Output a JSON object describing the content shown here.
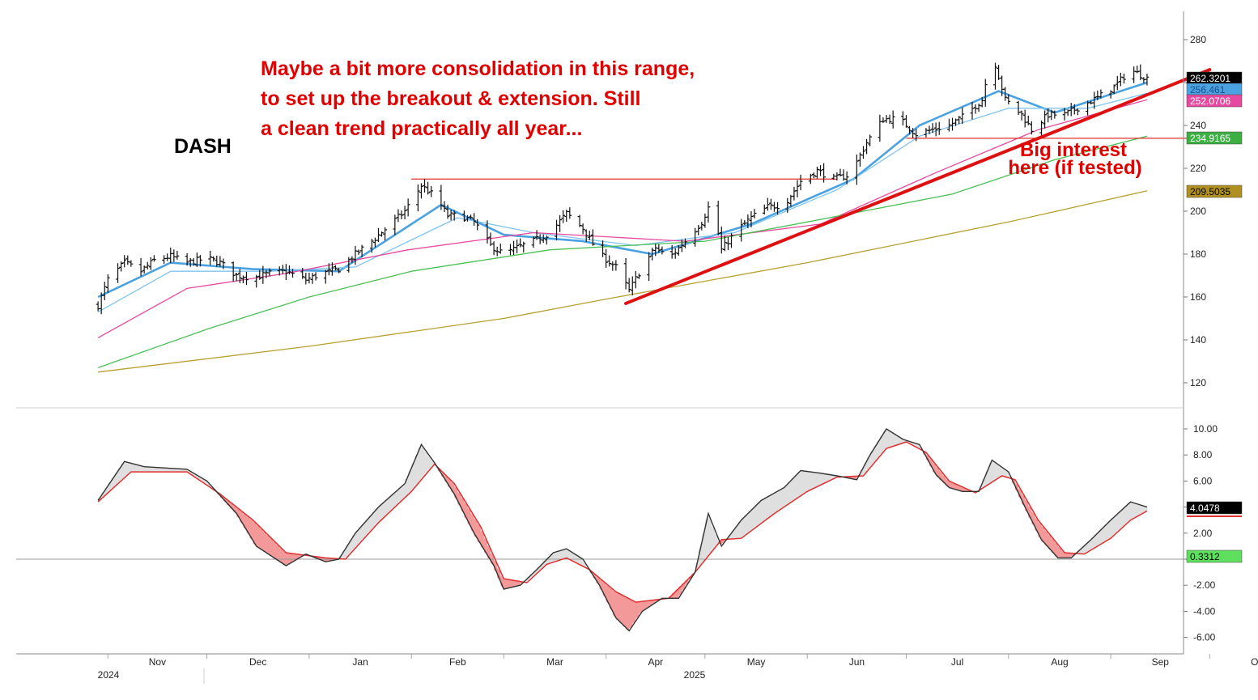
{
  "chart_data": [
    {
      "type": "ohlc",
      "ticker": "DASH",
      "title": "DASH",
      "annotation_main": [
        "Maybe a bit more consolidation in this range,",
        "to set up the breakout & extension. Still",
        "a clean trend practically all year..."
      ],
      "annotation_support": [
        "Big interest",
        "here (if tested)"
      ],
      "ylim": [
        110,
        288
      ],
      "y_ticks": [
        120,
        140,
        160,
        180,
        200,
        220,
        240,
        260,
        280
      ],
      "x_months": [
        "Nov",
        "Dec",
        "Jan",
        "Feb",
        "Mar",
        "Apr",
        "May",
        "Jun",
        "Jul",
        "Aug",
        "Sep",
        "Oct"
      ],
      "x_years": [
        "2024",
        "2025"
      ],
      "close_path": [
        [
          "2024-10-29",
          156
        ],
        [
          "2024-11-01",
          168
        ],
        [
          "2024-11-06",
          176
        ],
        [
          "2024-11-11",
          172
        ],
        [
          "2024-11-15",
          177
        ],
        [
          "2024-11-20",
          179
        ],
        [
          "2024-11-25",
          176
        ],
        [
          "2024-12-01",
          178
        ],
        [
          "2024-12-05",
          176
        ],
        [
          "2024-12-10",
          170
        ],
        [
          "2024-12-15",
          169
        ],
        [
          "2024-12-20",
          171
        ],
        [
          "2024-12-25",
          172
        ],
        [
          "2024-12-31",
          168
        ],
        [
          "2025-01-05",
          171
        ],
        [
          "2025-01-10",
          173
        ],
        [
          "2025-01-15",
          180
        ],
        [
          "2025-01-20",
          186
        ],
        [
          "2025-01-25",
          193
        ],
        [
          "2025-01-30",
          200
        ],
        [
          "2025-02-04",
          212
        ],
        [
          "2025-02-08",
          207
        ],
        [
          "2025-02-12",
          198
        ],
        [
          "2025-02-16",
          198
        ],
        [
          "2025-02-20",
          195
        ],
        [
          "2025-02-25",
          184
        ],
        [
          "2025-03-01",
          180
        ],
        [
          "2025-03-05",
          183
        ],
        [
          "2025-03-10",
          186
        ],
        [
          "2025-03-15",
          190
        ],
        [
          "2025-03-20",
          199
        ],
        [
          "2025-03-25",
          192
        ],
        [
          "2025-03-30",
          180
        ],
        [
          "2025-04-04",
          174
        ],
        [
          "2025-04-08",
          163
        ],
        [
          "2025-04-12",
          174
        ],
        [
          "2025-04-16",
          183
        ],
        [
          "2025-04-20",
          178
        ],
        [
          "2025-04-25",
          186
        ],
        [
          "2025-04-30",
          195
        ],
        [
          "2025-05-03",
          205
        ],
        [
          "2025-05-06",
          182
        ],
        [
          "2025-05-10",
          190
        ],
        [
          "2025-05-15",
          197
        ],
        [
          "2025-05-20",
          202
        ],
        [
          "2025-05-25",
          203
        ],
        [
          "2025-05-30",
          214
        ],
        [
          "2025-06-04",
          219
        ],
        [
          "2025-06-09",
          215
        ],
        [
          "2025-06-14",
          217
        ],
        [
          "2025-06-19",
          232
        ],
        [
          "2025-06-24",
          243
        ],
        [
          "2025-06-29",
          243
        ],
        [
          "2025-07-04",
          236
        ],
        [
          "2025-07-09",
          238
        ],
        [
          "2025-07-14",
          240
        ],
        [
          "2025-07-19",
          245
        ],
        [
          "2025-07-24",
          252
        ],
        [
          "2025-07-27",
          274
        ],
        [
          "2025-07-31",
          252
        ],
        [
          "2025-08-05",
          245
        ],
        [
          "2025-08-08",
          238
        ],
        [
          "2025-08-13",
          245
        ],
        [
          "2025-08-18",
          245
        ],
        [
          "2025-08-23",
          249
        ],
        [
          "2025-08-28",
          253
        ],
        [
          "2025-09-02",
          258
        ],
        [
          "2025-09-07",
          266
        ],
        [
          "2025-09-12",
          262
        ]
      ],
      "moving_averages": [
        {
          "name": "fast MA",
          "color": "#4aa3e0",
          "points": [
            [
              "2024-10-29",
              160
            ],
            [
              "2024-11-20",
              176
            ],
            [
              "2024-12-15",
              173
            ],
            [
              "2025-01-10",
              172
            ],
            [
              "2025-02-10",
              203
            ],
            [
              "2025-03-01",
              189
            ],
            [
              "2025-03-25",
              186
            ],
            [
              "2025-04-15",
              180
            ],
            [
              "2025-05-15",
              194
            ],
            [
              "2025-06-15",
              215
            ],
            [
              "2025-07-05",
              240
            ],
            [
              "2025-07-29",
              256
            ],
            [
              "2025-08-15",
              246
            ],
            [
              "2025-09-12",
              260
            ]
          ]
        },
        {
          "name": "slow MA",
          "color": "#80c4f0",
          "points": [
            [
              "2024-10-29",
              153
            ],
            [
              "2024-11-20",
              172
            ],
            [
              "2024-12-20",
              172
            ],
            [
              "2025-01-15",
              174
            ],
            [
              "2025-02-15",
              197
            ],
            [
              "2025-03-10",
              190
            ],
            [
              "2025-04-10",
              184
            ],
            [
              "2025-05-10",
              190
            ],
            [
              "2025-06-10",
              210
            ],
            [
              "2025-07-05",
              235
            ],
            [
              "2025-08-01",
              248
            ],
            [
              "2025-08-25",
              248
            ],
            [
              "2025-09-12",
              255
            ]
          ]
        },
        {
          "name": "50-day MA",
          "label": "252.0706",
          "color": "#e64aa0",
          "points": [
            [
              "2024-10-29",
              141
            ],
            [
              "2024-11-25",
              164
            ],
            [
              "2024-12-25",
              171
            ],
            [
              "2025-01-31",
              182
            ],
            [
              "2025-03-10",
              190
            ],
            [
              "2025-04-25",
              186
            ],
            [
              "2025-06-05",
              194
            ],
            [
              "2025-07-10",
              218
            ],
            [
              "2025-08-10",
              238
            ],
            [
              "2025-09-12",
              252
            ]
          ]
        },
        {
          "name": "100-day MA",
          "label": "234.9165",
          "color": "#4cbf56",
          "points": [
            [
              "2024-10-29",
              127
            ],
            [
              "2024-12-01",
              145
            ],
            [
              "2025-01-01",
              160
            ],
            [
              "2025-02-01",
              172
            ],
            [
              "2025-03-15",
              182
            ],
            [
              "2025-05-01",
              186
            ],
            [
              "2025-06-01",
              195
            ],
            [
              "2025-07-15",
              208
            ],
            [
              "2025-08-15",
              224
            ],
            [
              "2025-09-12",
              235
            ]
          ]
        },
        {
          "name": "200-day MA",
          "label": "209.5035",
          "color": "#b8a030",
          "points": [
            [
              "2024-10-29",
              125
            ],
            [
              "2025-01-01",
              137
            ],
            [
              "2025-03-01",
              150
            ],
            [
              "2025-04-01",
              159
            ],
            [
              "2025-06-01",
              176
            ],
            [
              "2025-08-01",
              195
            ],
            [
              "2025-09-12",
              209.5
            ]
          ]
        }
      ],
      "horizontal_levels": [
        {
          "from": "2025-02-01",
          "to": "2025-06-10",
          "value": 215,
          "color": "#e03030"
        },
        {
          "from": "2025-07-01",
          "to": "2025-10-01",
          "value": 234,
          "color": "#e03030"
        }
      ],
      "trendline": {
        "from": [
          "2025-04-07",
          157
        ],
        "to": [
          "2025-10-01",
          266
        ],
        "color": "#dd1111"
      },
      "price_labels": [
        {
          "label": "262.3201",
          "value": 262.3201,
          "bg": "#000000",
          "fg": "#ffffff"
        },
        {
          "label": "256.461",
          "value": 256.461,
          "bg": "#4aa3e0",
          "fg": "#1a4f8a"
        },
        {
          "label": "252.0706",
          "value": 252.0706,
          "bg": "#e64aa0",
          "fg": "#ffffff"
        },
        {
          "label": "234.9165",
          "value": 234.9165,
          "bg": "#3cb043",
          "fg": "#ffffff"
        },
        {
          "label": "209.5035",
          "value": 209.5035,
          "bg": "#b09020",
          "fg": "#000000"
        }
      ]
    },
    {
      "type": "line",
      "title": "Oscillator",
      "ylim": [
        -7,
        11
      ],
      "y_ticks": [
        "10.00",
        "8.00",
        "6.00",
        "4.00",
        "2.00",
        "",
        "-2.00",
        "-4.00",
        "-6.00"
      ],
      "zero_line": 0,
      "series": [
        {
          "name": "oscillator",
          "color": "#333333",
          "points": [
            [
              "2024-10-29",
              4.5
            ],
            [
              "2024-11-06",
              7.5
            ],
            [
              "2024-11-12",
              7.1
            ],
            [
              "2024-11-25",
              6.9
            ],
            [
              "2024-12-01",
              6.0
            ],
            [
              "2024-12-10",
              3.5
            ],
            [
              "2024-12-16",
              1.0
            ],
            [
              "2024-12-25",
              -0.5
            ],
            [
              "2024-12-31",
              0.4
            ],
            [
              "2025-01-06",
              -0.2
            ],
            [
              "2025-01-10",
              0
            ],
            [
              "2025-01-15",
              2.0
            ],
            [
              "2025-01-22",
              4.0
            ],
            [
              "2025-01-30",
              5.8
            ],
            [
              "2025-02-04",
              8.8
            ],
            [
              "2025-02-08",
              7.4
            ],
            [
              "2025-02-14",
              5.0
            ],
            [
              "2025-02-20",
              2.0
            ],
            [
              "2025-02-26",
              -0.5
            ],
            [
              "2025-03-01",
              -2.3
            ],
            [
              "2025-03-06",
              -2.0
            ],
            [
              "2025-03-11",
              -0.8
            ],
            [
              "2025-03-16",
              0.5
            ],
            [
              "2025-03-20",
              0.8
            ],
            [
              "2025-03-25",
              0
            ],
            [
              "2025-03-30",
              -2.0
            ],
            [
              "2025-04-04",
              -4.5
            ],
            [
              "2025-04-08",
              -5.5
            ],
            [
              "2025-04-12",
              -4.0
            ],
            [
              "2025-04-18",
              -3.0
            ],
            [
              "2025-04-23",
              -3.0
            ],
            [
              "2025-04-28",
              -1.0
            ],
            [
              "2025-05-02",
              3.5
            ],
            [
              "2025-05-06",
              1.0
            ],
            [
              "2025-05-12",
              3.0
            ],
            [
              "2025-05-18",
              4.5
            ],
            [
              "2025-05-25",
              5.5
            ],
            [
              "2025-05-30",
              6.8
            ],
            [
              "2025-06-05",
              6.6
            ],
            [
              "2025-06-10",
              6.4
            ],
            [
              "2025-06-16",
              6.1
            ],
            [
              "2025-06-20",
              8.0
            ],
            [
              "2025-06-25",
              10.0
            ],
            [
              "2025-06-30",
              9.2
            ],
            [
              "2025-07-05",
              8.8
            ],
            [
              "2025-07-10",
              6.5
            ],
            [
              "2025-07-14",
              5.5
            ],
            [
              "2025-07-18",
              5.2
            ],
            [
              "2025-07-23",
              5.2
            ],
            [
              "2025-07-27",
              7.6
            ],
            [
              "2025-08-01",
              6.7
            ],
            [
              "2025-08-06",
              4.0
            ],
            [
              "2025-08-11",
              1.5
            ],
            [
              "2025-08-16",
              0.1
            ],
            [
              "2025-08-20",
              0.1
            ],
            [
              "2025-08-26",
              1.5
            ],
            [
              "2025-09-01",
              3.0
            ],
            [
              "2025-09-07",
              4.4
            ],
            [
              "2025-09-12",
              4.0
            ]
          ]
        },
        {
          "name": "signal",
          "color": "#e03030",
          "points": [
            [
              "2024-10-29",
              4.4
            ],
            [
              "2024-11-08",
              6.7
            ],
            [
              "2024-11-25",
              6.7
            ],
            [
              "2024-12-05",
              5.0
            ],
            [
              "2024-12-15",
              3.0
            ],
            [
              "2024-12-25",
              0.5
            ],
            [
              "2025-01-06",
              0.1
            ],
            [
              "2025-01-12",
              0
            ],
            [
              "2025-01-22",
              2.8
            ],
            [
              "2025-02-01",
              5.2
            ],
            [
              "2025-02-08",
              7.3
            ],
            [
              "2025-02-14",
              5.8
            ],
            [
              "2025-02-22",
              2.5
            ],
            [
              "2025-03-01",
              -1.5
            ],
            [
              "2025-03-08",
              -1.8
            ],
            [
              "2025-03-14",
              -0.4
            ],
            [
              "2025-03-20",
              0.1
            ],
            [
              "2025-03-27",
              -0.8
            ],
            [
              "2025-04-04",
              -2.5
            ],
            [
              "2025-04-10",
              -3.3
            ],
            [
              "2025-04-20",
              -3.0
            ],
            [
              "2025-04-28",
              -1.0
            ],
            [
              "2025-05-06",
              1.5
            ],
            [
              "2025-05-12",
              1.6
            ],
            [
              "2025-05-22",
              3.5
            ],
            [
              "2025-06-01",
              5.2
            ],
            [
              "2025-06-10",
              6.3
            ],
            [
              "2025-06-18",
              6.4
            ],
            [
              "2025-06-25",
              8.5
            ],
            [
              "2025-07-01",
              9.0
            ],
            [
              "2025-07-07",
              8.2
            ],
            [
              "2025-07-14",
              6.0
            ],
            [
              "2025-07-22",
              5.1
            ],
            [
              "2025-07-30",
              6.4
            ],
            [
              "2025-08-03",
              6.1
            ],
            [
              "2025-08-10",
              3.0
            ],
            [
              "2025-08-18",
              0.5
            ],
            [
              "2025-08-24",
              0.4
            ],
            [
              "2025-09-01",
              1.6
            ],
            [
              "2025-09-07",
              3.0
            ],
            [
              "2025-09-12",
              3.7
            ]
          ]
        }
      ],
      "value_labels": [
        {
          "label": "4.0478",
          "value": 4.0478,
          "bg": "#000000",
          "fg": "#ffffff"
        },
        {
          "label": "0.3312",
          "value": 0.3312,
          "bg": "#5ee05e",
          "fg": "#000000"
        }
      ]
    }
  ]
}
